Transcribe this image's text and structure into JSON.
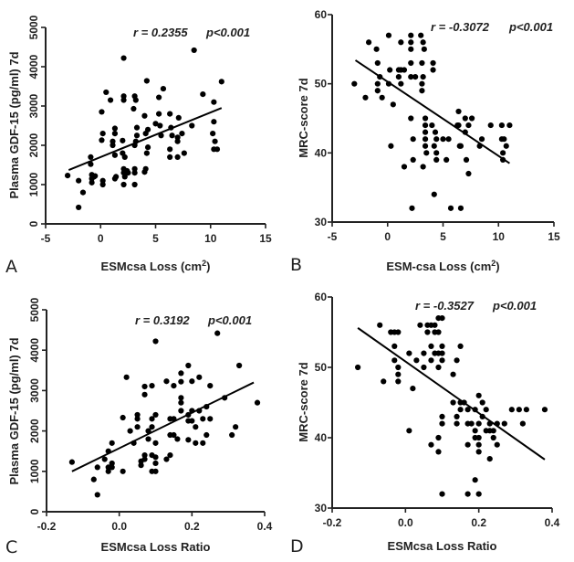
{
  "chart_data": [
    {
      "panel": "A",
      "type": "scatter",
      "xlabel": "ESMcsa Loss (cm",
      "xlabel_sup": "2",
      "xlabel_end": ")",
      "ylabel": "Plasma GDF-15 (pg/ml) 7d",
      "xlim": [
        -5,
        15
      ],
      "ylim": [
        0,
        5000
      ],
      "xticks": [
        -5,
        0,
        5,
        10,
        15
      ],
      "xtick_labels": [
        "-5",
        "0",
        "5",
        "10",
        "15"
      ],
      "yticks": [
        0,
        1000,
        2000,
        3000,
        4000,
        5000
      ],
      "ytick_labels": [
        "0",
        "1000",
        "2000",
        "3000",
        "4000",
        "5000"
      ],
      "grid": false,
      "annotation_r": "r = 0.2355",
      "annotation_p": "p<0.001",
      "fit_line": {
        "x": [
          -2.9,
          11.0
        ],
        "y": [
          1370,
          2950
        ]
      },
      "points": [
        [
          -3.0,
          1230
        ],
        [
          -2.0,
          1100
        ],
        [
          -2.0,
          420
        ],
        [
          -1.6,
          800
        ],
        [
          -0.9,
          1700
        ],
        [
          -0.9,
          1520
        ],
        [
          -0.8,
          1250
        ],
        [
          -0.8,
          1150
        ],
        [
          -0.8,
          1050
        ],
        [
          -0.6,
          1200
        ],
        [
          -0.5,
          1220
        ],
        [
          0.1,
          2850
        ],
        [
          0.1,
          2130
        ],
        [
          0.2,
          2300
        ],
        [
          0.2,
          1100
        ],
        [
          0.2,
          1000
        ],
        [
          0.5,
          3350
        ],
        [
          0.9,
          3150
        ],
        [
          1.1,
          2100
        ],
        [
          1.1,
          2000
        ],
        [
          1.3,
          2430
        ],
        [
          1.3,
          2300
        ],
        [
          1.3,
          1750
        ],
        [
          1.3,
          1150
        ],
        [
          1.4,
          1200
        ],
        [
          2.1,
          4220
        ],
        [
          2.1,
          3250
        ],
        [
          2.1,
          3150
        ],
        [
          2.0,
          2120
        ],
        [
          2.0,
          1800
        ],
        [
          2.2,
          1700
        ],
        [
          2.1,
          1400
        ],
        [
          2.1,
          1300
        ],
        [
          2.2,
          1200
        ],
        [
          2.1,
          1000
        ],
        [
          2.4,
          1350
        ],
        [
          2.5,
          1300
        ],
        [
          3.1,
          3250
        ],
        [
          3.2,
          3150
        ],
        [
          3.0,
          2930
        ],
        [
          3.3,
          2450
        ],
        [
          3.3,
          2250
        ],
        [
          3.2,
          2100
        ],
        [
          3.1,
          2000
        ],
        [
          3.1,
          1400
        ],
        [
          3.1,
          1300
        ],
        [
          3.1,
          1000
        ],
        [
          4.0,
          2750
        ],
        [
          4.1,
          2300
        ],
        [
          4.2,
          3640
        ],
        [
          4.3,
          2400
        ],
        [
          4.2,
          1800
        ],
        [
          4.3,
          1950
        ],
        [
          4.1,
          1400
        ],
        [
          4.0,
          1320
        ],
        [
          5.0,
          2550
        ],
        [
          5.3,
          3220
        ],
        [
          5.3,
          2800
        ],
        [
          5.4,
          2500
        ],
        [
          5.5,
          2250
        ],
        [
          5.7,
          3440
        ],
        [
          6.3,
          2800
        ],
        [
          6.3,
          1900
        ],
        [
          6.3,
          1700
        ],
        [
          6.4,
          2450
        ],
        [
          6.5,
          2250
        ],
        [
          7.0,
          2200
        ],
        [
          7.0,
          2100
        ],
        [
          7.0,
          1700
        ],
        [
          7.1,
          2700
        ],
        [
          7.4,
          2300
        ],
        [
          7.6,
          1800
        ],
        [
          8.3,
          2500
        ],
        [
          8.5,
          4420
        ],
        [
          9.3,
          3300
        ],
        [
          10.3,
          3100
        ],
        [
          10.3,
          2600
        ],
        [
          10.2,
          2300
        ],
        [
          10.4,
          2100
        ],
        [
          10.3,
          1900
        ],
        [
          10.6,
          1900
        ],
        [
          11.0,
          3620
        ]
      ]
    },
    {
      "panel": "B",
      "type": "scatter",
      "xlabel": "ESM-csa Loss (cm",
      "xlabel_sup": "2",
      "xlabel_end": ")",
      "ylabel": "MRC-score 7d",
      "xlim": [
        -5,
        15
      ],
      "ylim": [
        30,
        60
      ],
      "xticks": [
        -5,
        0,
        5,
        10,
        15
      ],
      "xtick_labels": [
        "-5",
        "0",
        "5",
        "10",
        "15"
      ],
      "yticks": [
        30,
        40,
        50,
        60
      ],
      "ytick_labels": [
        "30",
        "40",
        "50",
        "60"
      ],
      "grid": false,
      "annotation_r": "r = -0.3072",
      "annotation_p": "p<0.001",
      "fit_line": {
        "x": [
          -2.9,
          11.0
        ],
        "y": [
          53.4,
          38.5
        ]
      },
      "points": [
        [
          -3.0,
          50
        ],
        [
          -2.0,
          48
        ],
        [
          -1.7,
          56
        ],
        [
          -1.0,
          55
        ],
        [
          -0.9,
          53
        ],
        [
          -0.9,
          50
        ],
        [
          -0.9,
          49
        ],
        [
          -0.7,
          51
        ],
        [
          -0.5,
          48
        ],
        [
          0.1,
          57
        ],
        [
          0.1,
          50
        ],
        [
          0.2,
          52
        ],
        [
          0.3,
          41
        ],
        [
          0.5,
          47
        ],
        [
          1.0,
          52
        ],
        [
          1.0,
          51
        ],
        [
          1.2,
          56
        ],
        [
          1.2,
          52
        ],
        [
          1.2,
          50
        ],
        [
          1.5,
          52
        ],
        [
          1.5,
          38
        ],
        [
          2.1,
          57
        ],
        [
          2.1,
          56
        ],
        [
          2.1,
          55
        ],
        [
          2.1,
          53
        ],
        [
          2.1,
          51
        ],
        [
          2.1,
          45
        ],
        [
          2.3,
          42
        ],
        [
          2.3,
          39
        ],
        [
          2.2,
          32
        ],
        [
          2.5,
          51
        ],
        [
          3.0,
          57
        ],
        [
          3.2,
          56
        ],
        [
          3.3,
          55
        ],
        [
          3.1,
          53
        ],
        [
          3.2,
          51
        ],
        [
          3.1,
          50
        ],
        [
          3.1,
          49
        ],
        [
          3.2,
          38
        ],
        [
          3.4,
          45
        ],
        [
          3.4,
          44
        ],
        [
          3.4,
          43
        ],
        [
          3.4,
          42
        ],
        [
          3.4,
          41
        ],
        [
          3.5,
          40
        ],
        [
          4.0,
          44
        ],
        [
          4.1,
          53
        ],
        [
          4.1,
          52
        ],
        [
          4.2,
          41
        ],
        [
          4.2,
          34
        ],
        [
          4.3,
          43
        ],
        [
          4.4,
          42
        ],
        [
          4.4,
          40
        ],
        [
          4.4,
          39
        ],
        [
          5.0,
          42
        ],
        [
          5.3,
          39
        ],
        [
          5.5,
          42
        ],
        [
          5.7,
          32
        ],
        [
          6.3,
          44
        ],
        [
          6.4,
          46
        ],
        [
          6.4,
          44
        ],
        [
          6.5,
          41
        ],
        [
          6.6,
          41
        ],
        [
          6.6,
          32
        ],
        [
          7.0,
          45
        ],
        [
          7.0,
          43
        ],
        [
          7.1,
          39
        ],
        [
          7.3,
          44
        ],
        [
          7.3,
          37
        ],
        [
          7.6,
          45
        ],
        [
          8.3,
          41
        ],
        [
          8.5,
          42
        ],
        [
          9.3,
          44
        ],
        [
          10.3,
          44
        ],
        [
          10.3,
          42
        ],
        [
          10.5,
          42
        ],
        [
          10.4,
          40
        ],
        [
          10.4,
          39
        ],
        [
          10.7,
          41
        ],
        [
          11.0,
          44
        ]
      ]
    },
    {
      "panel": "C",
      "type": "scatter",
      "xlabel": "ESMcsa Loss Ratio",
      "ylabel": "Plasma GDF-15 (pg/ml) 7d",
      "xlim": [
        -0.2,
        0.4
      ],
      "ylim": [
        0,
        5000
      ],
      "xticks": [
        -0.2,
        0.0,
        0.2,
        0.4
      ],
      "xtick_labels": [
        "-0.2",
        "0.0",
        "0.2",
        "0.4"
      ],
      "yticks": [
        0,
        1000,
        2000,
        3000,
        4000,
        5000
      ],
      "ytick_labels": [
        "0",
        "1000",
        "2000",
        "3000",
        "4000",
        "5000"
      ],
      "grid": false,
      "annotation_r": "r = 0.3192",
      "annotation_p": "p<0.001",
      "fit_line": {
        "x": [
          -0.13,
          0.37
        ],
        "y": [
          1000,
          3200
        ]
      },
      "points": [
        [
          -0.13,
          1230
        ],
        [
          -0.07,
          800
        ],
        [
          -0.06,
          1100
        ],
        [
          -0.06,
          420
        ],
        [
          -0.04,
          1300
        ],
        [
          -0.03,
          1500
        ],
        [
          -0.03,
          1100
        ],
        [
          -0.03,
          1000
        ],
        [
          -0.02,
          1700
        ],
        [
          -0.02,
          1200
        ],
        [
          -0.02,
          1100
        ],
        [
          0.01,
          2330
        ],
        [
          0.01,
          1000
        ],
        [
          0.02,
          3330
        ],
        [
          0.03,
          2000
        ],
        [
          0.04,
          1700
        ],
        [
          0.05,
          2400
        ],
        [
          0.05,
          2300
        ],
        [
          0.05,
          2100
        ],
        [
          0.06,
          1250
        ],
        [
          0.06,
          1150
        ],
        [
          0.07,
          3100
        ],
        [
          0.07,
          2900
        ],
        [
          0.07,
          1400
        ],
        [
          0.07,
          1300
        ],
        [
          0.08,
          2000
        ],
        [
          0.08,
          1800
        ],
        [
          0.09,
          3120
        ],
        [
          0.09,
          2300
        ],
        [
          0.09,
          2100
        ],
        [
          0.09,
          1400
        ],
        [
          0.09,
          1000
        ],
        [
          0.1,
          4220
        ],
        [
          0.1,
          2400
        ],
        [
          0.1,
          1700
        ],
        [
          0.1,
          1350
        ],
        [
          0.1,
          1200
        ],
        [
          0.1,
          1000
        ],
        [
          0.13,
          3230
        ],
        [
          0.13,
          1300
        ],
        [
          0.14,
          1900
        ],
        [
          0.14,
          1400
        ],
        [
          0.14,
          2300
        ],
        [
          0.15,
          3120
        ],
        [
          0.15,
          2300
        ],
        [
          0.15,
          1900
        ],
        [
          0.16,
          1800
        ],
        [
          0.17,
          3430
        ],
        [
          0.17,
          3220
        ],
        [
          0.17,
          2820
        ],
        [
          0.17,
          2700
        ],
        [
          0.17,
          2500
        ],
        [
          0.19,
          3620
        ],
        [
          0.19,
          2400
        ],
        [
          0.19,
          2250
        ],
        [
          0.19,
          1780
        ],
        [
          0.2,
          3230
        ],
        [
          0.2,
          2500
        ],
        [
          0.2,
          2250
        ],
        [
          0.21,
          2100
        ],
        [
          0.21,
          1700
        ],
        [
          0.22,
          3330
        ],
        [
          0.22,
          2500
        ],
        [
          0.23,
          2300
        ],
        [
          0.23,
          1700
        ],
        [
          0.24,
          2600
        ],
        [
          0.24,
          1900
        ],
        [
          0.25,
          3120
        ],
        [
          0.25,
          2300
        ],
        [
          0.27,
          4420
        ],
        [
          0.29,
          2820
        ],
        [
          0.31,
          1900
        ],
        [
          0.32,
          2100
        ],
        [
          0.33,
          3620
        ],
        [
          0.38,
          2700
        ]
      ]
    },
    {
      "panel": "D",
      "type": "scatter",
      "xlabel": "ESMcsa Loss Ratio",
      "ylabel": "MRC-score 7d",
      "xlim": [
        -0.2,
        0.4
      ],
      "ylim": [
        30,
        60
      ],
      "xticks": [
        -0.2,
        0.0,
        0.2,
        0.4
      ],
      "xtick_labels": [
        "-0.2",
        "0.0",
        "0.2",
        "0.4"
      ],
      "yticks": [
        30,
        40,
        50,
        60
      ],
      "ytick_labels": [
        "30",
        "40",
        "50",
        "60"
      ],
      "grid": false,
      "annotation_r": "r = -0.3527",
      "annotation_p": "p<0.001",
      "fit_line": {
        "x": [
          -0.13,
          0.38
        ],
        "y": [
          55.6,
          36.9
        ]
      },
      "points": [
        [
          -0.13,
          50
        ],
        [
          -0.07,
          56
        ],
        [
          -0.06,
          48
        ],
        [
          -0.04,
          55
        ],
        [
          -0.03,
          55
        ],
        [
          -0.03,
          53
        ],
        [
          -0.03,
          51
        ],
        [
          -0.02,
          55
        ],
        [
          -0.02,
          50
        ],
        [
          -0.02,
          49
        ],
        [
          -0.02,
          48
        ],
        [
          0.01,
          52
        ],
        [
          0.01,
          41
        ],
        [
          0.02,
          47
        ],
        [
          0.03,
          51
        ],
        [
          0.04,
          56
        ],
        [
          0.05,
          52
        ],
        [
          0.05,
          50
        ],
        [
          0.06,
          56
        ],
        [
          0.06,
          55
        ],
        [
          0.07,
          56
        ],
        [
          0.07,
          53
        ],
        [
          0.07,
          51
        ],
        [
          0.07,
          39
        ],
        [
          0.08,
          56
        ],
        [
          0.08,
          55
        ],
        [
          0.08,
          52
        ],
        [
          0.09,
          57
        ],
        [
          0.09,
          55
        ],
        [
          0.09,
          52
        ],
        [
          0.09,
          50
        ],
        [
          0.09,
          40
        ],
        [
          0.09,
          38
        ],
        [
          0.1,
          57
        ],
        [
          0.1,
          53
        ],
        [
          0.1,
          52
        ],
        [
          0.1,
          51
        ],
        [
          0.1,
          43
        ],
        [
          0.1,
          42
        ],
        [
          0.1,
          32
        ],
        [
          0.13,
          49
        ],
        [
          0.13,
          45
        ],
        [
          0.14,
          51
        ],
        [
          0.14,
          43
        ],
        [
          0.14,
          42
        ],
        [
          0.15,
          53
        ],
        [
          0.15,
          45
        ],
        [
          0.15,
          44
        ],
        [
          0.16,
          45
        ],
        [
          0.17,
          44
        ],
        [
          0.17,
          42
        ],
        [
          0.17,
          39
        ],
        [
          0.17,
          32
        ],
        [
          0.18,
          42
        ],
        [
          0.19,
          44
        ],
        [
          0.19,
          41
        ],
        [
          0.19,
          40
        ],
        [
          0.19,
          34
        ],
        [
          0.2,
          46
        ],
        [
          0.2,
          42
        ],
        [
          0.2,
          40
        ],
        [
          0.2,
          39
        ],
        [
          0.2,
          38
        ],
        [
          0.2,
          32
        ],
        [
          0.21,
          45
        ],
        [
          0.21,
          43
        ],
        [
          0.22,
          44
        ],
        [
          0.22,
          41
        ],
        [
          0.23,
          42
        ],
        [
          0.23,
          41
        ],
        [
          0.23,
          37
        ],
        [
          0.24,
          41
        ],
        [
          0.24,
          40
        ],
        [
          0.25,
          42
        ],
        [
          0.25,
          39
        ],
        [
          0.27,
          42
        ],
        [
          0.29,
          44
        ],
        [
          0.31,
          44
        ],
        [
          0.32,
          42
        ],
        [
          0.33,
          44
        ],
        [
          0.38,
          44
        ]
      ]
    }
  ]
}
